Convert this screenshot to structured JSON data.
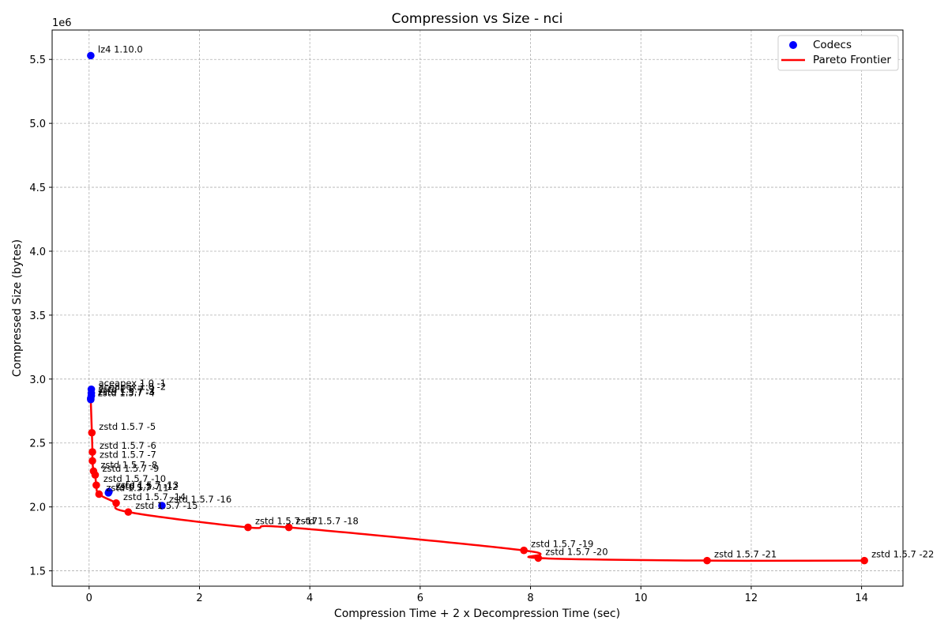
{
  "chart_data": {
    "type": "scatter",
    "title": "Compression vs Size - nci",
    "xlabel": "Compression Time + 2 x Decompression Time (sec)",
    "ylabel": "Compressed Size (bytes)",
    "y_offset_label": "1e6",
    "xlim": [
      -0.67,
      14.75
    ],
    "ylim": [
      1.38,
      5.73
    ],
    "x_ticks": [
      0,
      2,
      4,
      6,
      8,
      10,
      12,
      14
    ],
    "y_ticks": [
      1.5,
      2.0,
      2.5,
      3.0,
      3.5,
      4.0,
      4.5,
      5.0,
      5.5
    ],
    "y_tick_labels": [
      "1.5",
      "2.0",
      "2.5",
      "3.0",
      "3.5",
      "4.0",
      "4.5",
      "5.0",
      "5.5"
    ],
    "grid": true,
    "legend_position": "top-right",
    "legend": [
      {
        "name": "Codecs",
        "kind": "marker",
        "color": "#0000ff"
      },
      {
        "name": "Pareto Frontier",
        "kind": "line",
        "color": "#ff0000"
      }
    ],
    "series": [
      {
        "name": "Codecs",
        "color": "#0000ff",
        "points": [
          {
            "label": "lz4 1.10.0",
            "x": 0.03,
            "y": 5.53
          },
          {
            "label": "aceapex 1.0 -1",
            "x": 0.04,
            "y": 2.92
          },
          {
            "label": "aceapex 1.0 -2",
            "x": 0.04,
            "y": 2.89
          },
          {
            "label": "zstd 1.5.7 -2",
            "x": 0.04,
            "y": 2.87
          },
          {
            "label": "zstd 1.5.7 -3",
            "x": 0.03,
            "y": 2.85
          },
          {
            "label": "zstd 1.5.7 -4",
            "x": 0.03,
            "y": 2.84
          },
          {
            "label": "zstd 1.5.7 -12",
            "x": 0.35,
            "y": 2.11
          },
          {
            "label": "zstd 1.5.7 -13",
            "x": 0.36,
            "y": 2.12
          },
          {
            "label": "zstd 1.5.7 -16",
            "x": 1.32,
            "y": 2.01
          }
        ]
      },
      {
        "name": "Pareto Frontier",
        "color": "#ff0000",
        "points": [
          {
            "label": "zstd 1.5.7 -5",
            "x": 0.05,
            "y": 2.58
          },
          {
            "label": "zstd 1.5.7 -6",
            "x": 0.06,
            "y": 2.43
          },
          {
            "label": "zstd 1.5.7 -7",
            "x": 0.06,
            "y": 2.36
          },
          {
            "label": "zstd 1.5.7 -8",
            "x": 0.08,
            "y": 2.28
          },
          {
            "label": "zstd 1.5.7 -9",
            "x": 0.11,
            "y": 2.25
          },
          {
            "label": "zstd 1.5.7 -10",
            "x": 0.13,
            "y": 2.17
          },
          {
            "label": "zstd 1.5.7 -11",
            "x": 0.18,
            "y": 2.1
          },
          {
            "label": "zstd 1.5.7 -14",
            "x": 0.49,
            "y": 2.03
          },
          {
            "label": "zstd 1.5.7 -15",
            "x": 0.71,
            "y": 1.96
          },
          {
            "label": "zstd 1.5.7 -17",
            "x": 2.88,
            "y": 1.84
          },
          {
            "label": "zstd 1.5.7 -18",
            "x": 3.62,
            "y": 1.84
          },
          {
            "label": "zstd 1.5.7 -19",
            "x": 7.88,
            "y": 1.66
          },
          {
            "label": "zstd 1.5.7 -20",
            "x": 8.14,
            "y": 1.6
          },
          {
            "label": "zstd 1.5.7 -21",
            "x": 11.2,
            "y": 1.58
          },
          {
            "label": "zstd 1.5.7 -22",
            "x": 14.05,
            "y": 1.58
          }
        ]
      }
    ],
    "frontier_line": [
      {
        "x": 0.03,
        "y": 2.84
      },
      {
        "x": 0.05,
        "y": 2.58
      },
      {
        "x": 0.06,
        "y": 2.43
      },
      {
        "x": 0.06,
        "y": 2.36
      },
      {
        "x": 0.08,
        "y": 2.28
      },
      {
        "x": 0.11,
        "y": 2.25
      },
      {
        "x": 0.13,
        "y": 2.17
      },
      {
        "x": 0.18,
        "y": 2.1
      },
      {
        "x": 0.49,
        "y": 2.03
      },
      {
        "x": 0.71,
        "y": 1.96
      },
      {
        "x": 2.88,
        "y": 1.84
      },
      {
        "x": 3.62,
        "y": 1.84
      },
      {
        "x": 7.88,
        "y": 1.66
      },
      {
        "x": 8.14,
        "y": 1.6
      },
      {
        "x": 11.2,
        "y": 1.58
      },
      {
        "x": 14.05,
        "y": 1.58
      }
    ]
  }
}
